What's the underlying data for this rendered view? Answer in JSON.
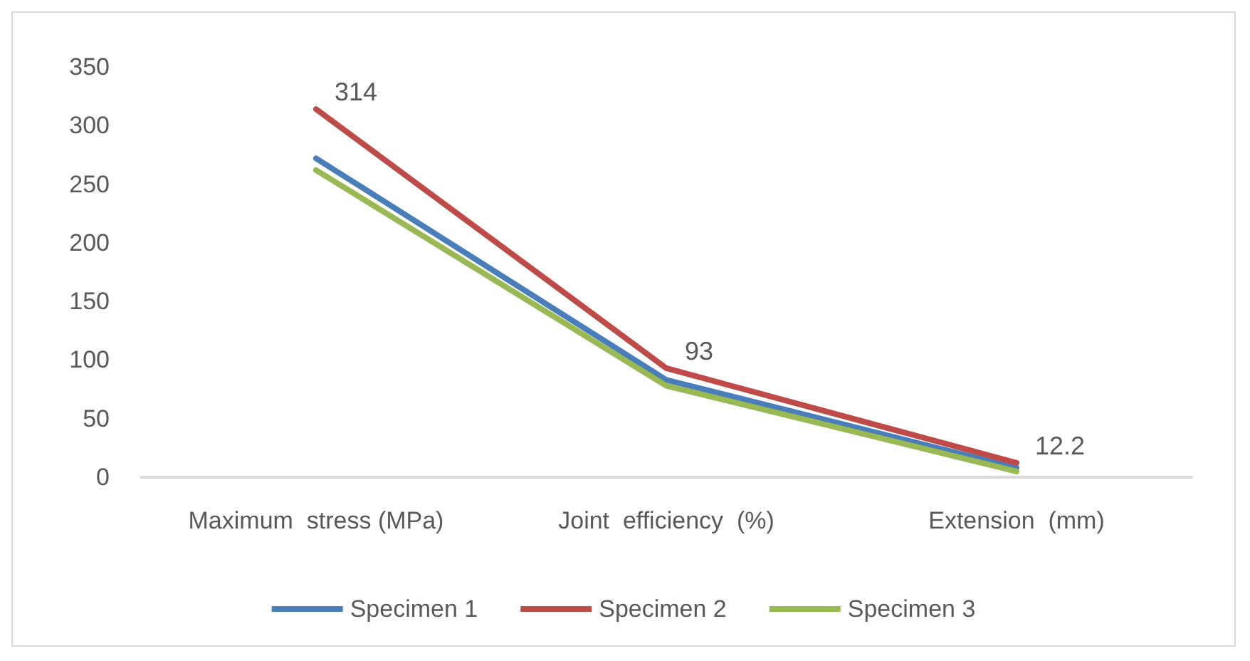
{
  "chart_data": {
    "type": "line",
    "categories": [
      "Maximum  stress (MPa)",
      "Joint  efficiency  (%)",
      "Extension  (mm)"
    ],
    "series": [
      {
        "name": "Specimen 1",
        "color": "#4a7ebb",
        "values": [
          272,
          83,
          8
        ]
      },
      {
        "name": "Specimen 2",
        "color": "#be4b48",
        "values": [
          314,
          93,
          12.2
        ],
        "value_labels": [
          "314",
          "93",
          "12.2"
        ]
      },
      {
        "name": "Specimen 3",
        "color": "#98b954",
        "values": [
          262,
          78,
          5
        ]
      }
    ],
    "ylim": [
      0,
      350
    ],
    "yticks": [
      0,
      50,
      100,
      150,
      200,
      250,
      300,
      350
    ],
    "grid": false,
    "legend": "bottom",
    "marker": "none",
    "line_style": "solid"
  }
}
